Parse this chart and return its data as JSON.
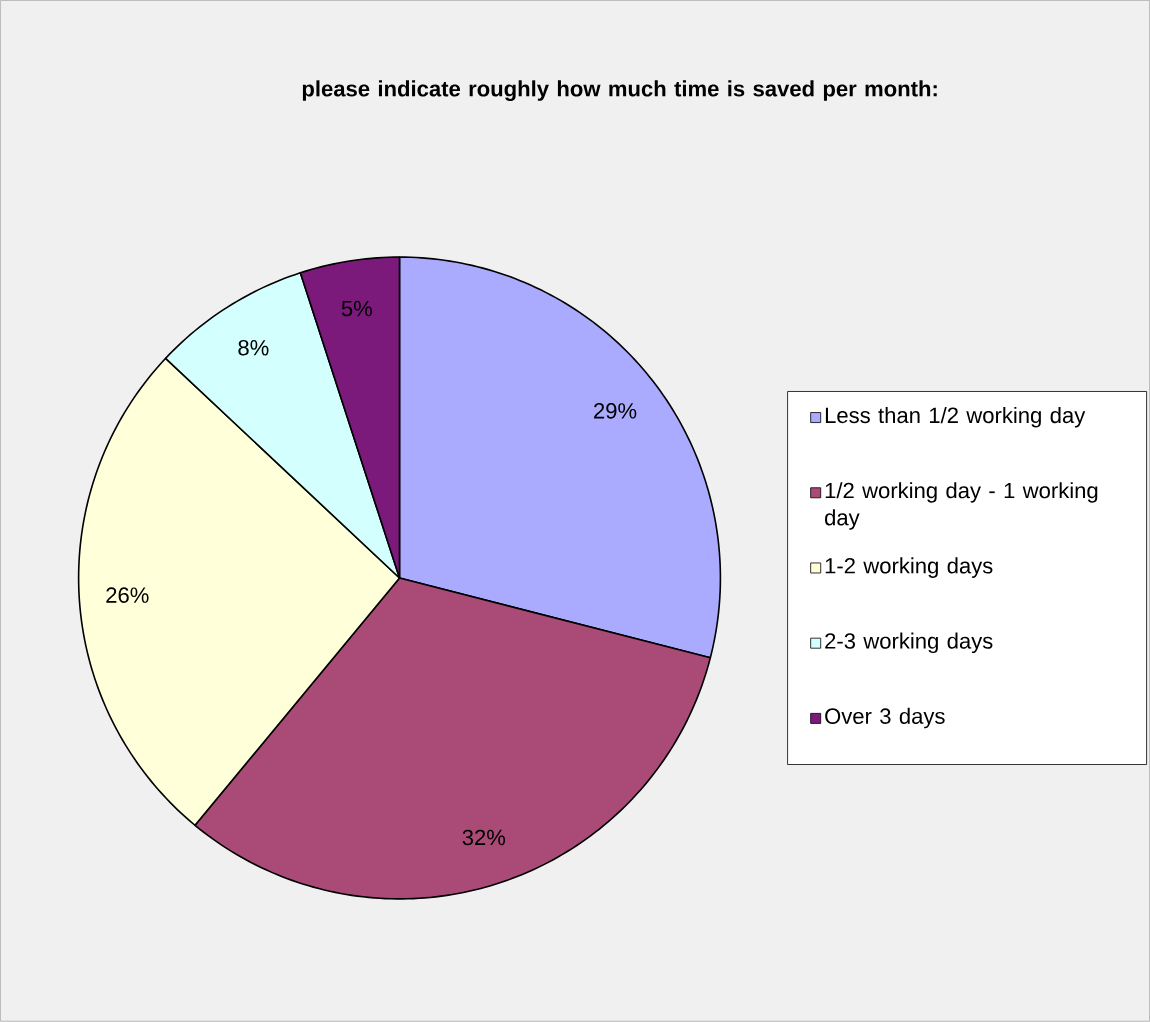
{
  "chart_data": {
    "type": "pie",
    "title": "please indicate roughly how much time is saved per month:",
    "categories": [
      "Less than 1/2 working day",
      "1/2 working day - 1 working day",
      "1-2 working days",
      "2-3 working days",
      "Over 3 days"
    ],
    "values": [
      29,
      32,
      26,
      8,
      5
    ],
    "value_labels": [
      "29%",
      "32%",
      "26%",
      "8%",
      "5%"
    ],
    "colors": [
      "#aaaaff",
      "#aa4a77",
      "#ffffd9",
      "#d4ffff",
      "#7b1a7b"
    ],
    "legend": "right"
  }
}
